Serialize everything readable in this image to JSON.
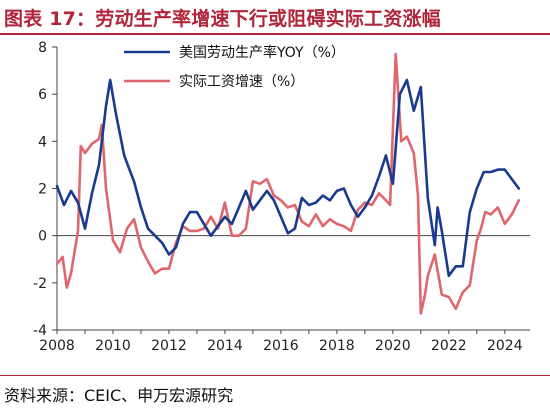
{
  "title": "图表 17：劳动生产率增速下行或阻碍实际工资涨幅",
  "source": "资料来源：CEIC、申万宏源研究",
  "colors": {
    "accent": "#b0253a",
    "productivity": "#1a3a8f",
    "wages": "#e0666e"
  },
  "chart_data": {
    "type": "line",
    "xlim": [
      2008,
      2024.9
    ],
    "ylim": [
      -4,
      8
    ],
    "x_ticks": [
      "2008",
      "2010",
      "2012",
      "2014",
      "2016",
      "2018",
      "2020",
      "2022",
      "2024"
    ],
    "y_ticks": [
      "-4",
      "-2",
      "0",
      "2",
      "4",
      "6",
      "8"
    ],
    "grid": false,
    "legend_position": "top-left",
    "series": [
      {
        "name": "美国劳动生产率YOY（%）",
        "color": "#1a3a8f",
        "points": [
          [
            2008.0,
            2.1
          ],
          [
            2008.25,
            1.3
          ],
          [
            2008.5,
            1.9
          ],
          [
            2008.75,
            1.4
          ],
          [
            2009.0,
            0.3
          ],
          [
            2009.25,
            1.8
          ],
          [
            2009.5,
            3.0
          ],
          [
            2009.75,
            5.5
          ],
          [
            2009.9,
            6.6
          ],
          [
            2010.1,
            5.2
          ],
          [
            2010.4,
            3.4
          ],
          [
            2010.75,
            2.3
          ],
          [
            2011.0,
            1.2
          ],
          [
            2011.25,
            0.3
          ],
          [
            2011.5,
            0.0
          ],
          [
            2011.75,
            -0.3
          ],
          [
            2012.0,
            -0.8
          ],
          [
            2012.25,
            -0.5
          ],
          [
            2012.5,
            0.5
          ],
          [
            2012.75,
            1.0
          ],
          [
            2013.0,
            1.0
          ],
          [
            2013.25,
            0.5
          ],
          [
            2013.5,
            0.0
          ],
          [
            2013.75,
            0.4
          ],
          [
            2014.0,
            0.8
          ],
          [
            2014.25,
            0.5
          ],
          [
            2014.5,
            1.2
          ],
          [
            2014.75,
            1.9
          ],
          [
            2015.0,
            1.1
          ],
          [
            2015.25,
            1.5
          ],
          [
            2015.5,
            1.9
          ],
          [
            2015.75,
            1.5
          ],
          [
            2016.0,
            0.8
          ],
          [
            2016.25,
            0.1
          ],
          [
            2016.5,
            0.3
          ],
          [
            2016.75,
            1.6
          ],
          [
            2017.0,
            1.3
          ],
          [
            2017.25,
            1.4
          ],
          [
            2017.5,
            1.7
          ],
          [
            2017.75,
            1.5
          ],
          [
            2018.0,
            1.9
          ],
          [
            2018.25,
            2.0
          ],
          [
            2018.5,
            1.3
          ],
          [
            2018.75,
            0.8
          ],
          [
            2019.0,
            1.2
          ],
          [
            2019.25,
            1.7
          ],
          [
            2019.5,
            2.5
          ],
          [
            2019.75,
            3.4
          ],
          [
            2020.0,
            2.2
          ],
          [
            2020.25,
            6.0
          ],
          [
            2020.5,
            6.6
          ],
          [
            2020.75,
            5.3
          ],
          [
            2021.0,
            6.3
          ],
          [
            2021.25,
            1.6
          ],
          [
            2021.5,
            -0.4
          ],
          [
            2021.6,
            1.2
          ],
          [
            2021.75,
            0.2
          ],
          [
            2022.0,
            -1.7
          ],
          [
            2022.25,
            -1.3
          ],
          [
            2022.5,
            -1.3
          ],
          [
            2022.75,
            1.0
          ],
          [
            2023.0,
            2.0
          ],
          [
            2023.25,
            2.7
          ],
          [
            2023.5,
            2.7
          ],
          [
            2023.75,
            2.8
          ],
          [
            2024.0,
            2.8
          ],
          [
            2024.25,
            2.4
          ],
          [
            2024.5,
            2.0
          ]
        ]
      },
      {
        "name": "实际工资增速（%）",
        "color": "#e0666e",
        "points": [
          [
            2008.0,
            -1.2
          ],
          [
            2008.2,
            -0.9
          ],
          [
            2008.35,
            -2.2
          ],
          [
            2008.5,
            -1.6
          ],
          [
            2008.75,
            0.2
          ],
          [
            2008.85,
            3.8
          ],
          [
            2009.0,
            3.5
          ],
          [
            2009.25,
            3.9
          ],
          [
            2009.5,
            4.1
          ],
          [
            2009.6,
            4.7
          ],
          [
            2009.75,
            2.0
          ],
          [
            2010.0,
            -0.2
          ],
          [
            2010.25,
            -0.7
          ],
          [
            2010.5,
            0.3
          ],
          [
            2010.75,
            0.7
          ],
          [
            2011.0,
            -0.5
          ],
          [
            2011.25,
            -1.1
          ],
          [
            2011.5,
            -1.6
          ],
          [
            2011.75,
            -1.4
          ],
          [
            2012.0,
            -1.4
          ],
          [
            2012.25,
            -0.3
          ],
          [
            2012.5,
            0.4
          ],
          [
            2012.75,
            0.2
          ],
          [
            2013.0,
            0.2
          ],
          [
            2013.25,
            0.3
          ],
          [
            2013.5,
            0.8
          ],
          [
            2013.75,
            0.3
          ],
          [
            2014.0,
            1.4
          ],
          [
            2014.25,
            0.0
          ],
          [
            2014.5,
            0.0
          ],
          [
            2014.75,
            0.3
          ],
          [
            2015.0,
            2.3
          ],
          [
            2015.25,
            2.2
          ],
          [
            2015.5,
            2.4
          ],
          [
            2015.75,
            1.7
          ],
          [
            2016.0,
            1.5
          ],
          [
            2016.25,
            1.2
          ],
          [
            2016.5,
            1.3
          ],
          [
            2016.75,
            0.6
          ],
          [
            2017.0,
            0.4
          ],
          [
            2017.25,
            0.9
          ],
          [
            2017.5,
            0.4
          ],
          [
            2017.75,
            0.7
          ],
          [
            2018.0,
            0.5
          ],
          [
            2018.25,
            0.4
          ],
          [
            2018.5,
            0.2
          ],
          [
            2018.75,
            1.1
          ],
          [
            2019.0,
            1.4
          ],
          [
            2019.25,
            1.3
          ],
          [
            2019.5,
            1.8
          ],
          [
            2019.75,
            1.5
          ],
          [
            2019.9,
            1.3
          ],
          [
            2020.1,
            7.7
          ],
          [
            2020.3,
            4.0
          ],
          [
            2020.5,
            4.2
          ],
          [
            2020.75,
            3.5
          ],
          [
            2020.9,
            1.7
          ],
          [
            2021.0,
            -3.3
          ],
          [
            2021.15,
            -2.5
          ],
          [
            2021.25,
            -1.7
          ],
          [
            2021.5,
            -0.8
          ],
          [
            2021.75,
            -2.5
          ],
          [
            2022.0,
            -2.6
          ],
          [
            2022.25,
            -3.1
          ],
          [
            2022.5,
            -2.4
          ],
          [
            2022.75,
            -2.1
          ],
          [
            2023.0,
            -0.2
          ],
          [
            2023.15,
            0.3
          ],
          [
            2023.3,
            1.0
          ],
          [
            2023.5,
            0.9
          ],
          [
            2023.75,
            1.2
          ],
          [
            2024.0,
            0.5
          ],
          [
            2024.25,
            0.9
          ],
          [
            2024.5,
            1.5
          ]
        ]
      }
    ]
  }
}
